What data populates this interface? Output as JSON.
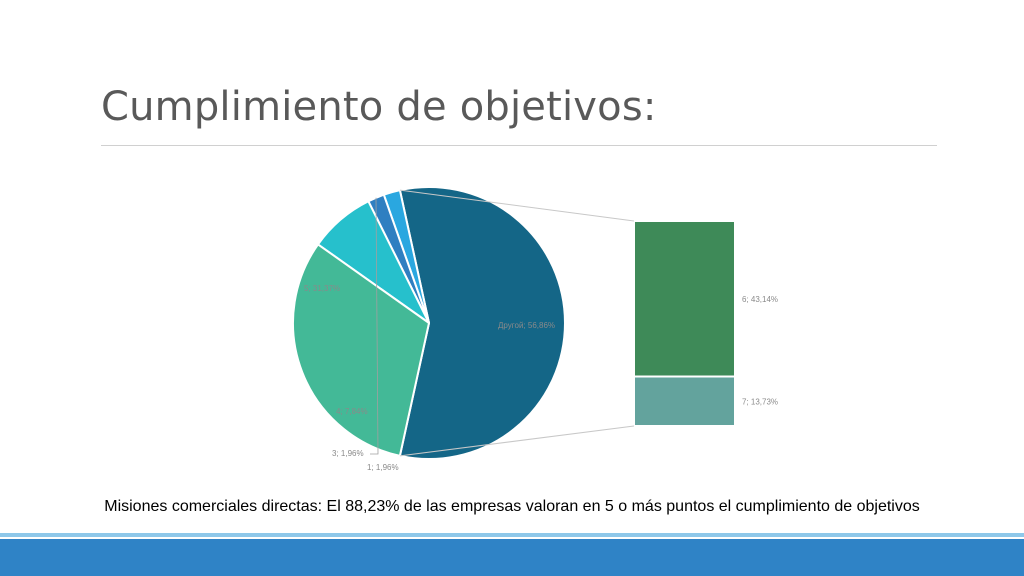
{
  "slide": {
    "title": "Cumplimiento de objetivos:",
    "caption": "Misiones comerciales directas: El 88,23% de las empresas valoran en 5 o más puntos el cumplimiento de objetivos"
  },
  "colors": {
    "title_text": "#595959",
    "rule": "#d0d0d0",
    "footer": "#2f83c6",
    "footer_accent": "#8ec8ea"
  },
  "chart_data": {
    "type": "bar-of-pie",
    "title": "",
    "pie": [
      {
        "label": "Другой; 56,86%",
        "category": "Другой",
        "value": 56.86,
        "color": "#146687"
      },
      {
        "label": "1; 1,96%",
        "category": "1",
        "value": 1.96,
        "color": "#2aa7e0"
      },
      {
        "label": "3; 1,96%",
        "category": "3",
        "value": 1.96,
        "color": "#2f7fc1"
      },
      {
        "label": "4; 7,84%",
        "category": "4",
        "value": 7.84,
        "color": "#26c0cc"
      },
      {
        "label": "5; 31,37%",
        "category": "5",
        "value": 31.37,
        "color": "#43b997"
      }
    ],
    "bar": [
      {
        "label": "6; 43,14%",
        "category": "6",
        "value": 43.14,
        "color": "#3e8a58"
      },
      {
        "label": "7; 13,73%",
        "category": "7",
        "value": 13.73,
        "color": "#63a39d"
      }
    ],
    "label_color": "#8a8a8a",
    "connector_color": "#c8c8c8"
  }
}
